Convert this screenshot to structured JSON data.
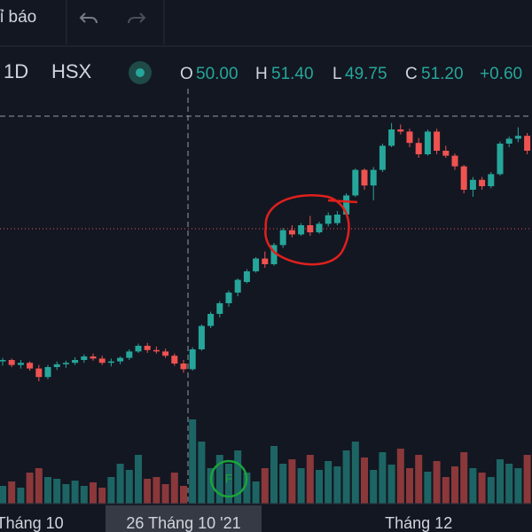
{
  "toolbar": {
    "indicators": "ỉ báo"
  },
  "chart_data": {
    "type": "candlestick",
    "legend": {
      "interval": "1D",
      "exchange": "HSX",
      "o_label": "O",
      "o_value": "50.00",
      "h_label": "H",
      "h_value": "51.40",
      "l_label": "L",
      "l_value": "49.75",
      "c_label": "C",
      "c_value": "51.20",
      "change": "+0.60"
    },
    "categories": [
      null,
      null,
      null,
      "Tháng 10",
      null,
      null,
      null,
      null,
      null,
      null,
      null,
      null,
      null,
      null,
      null,
      null,
      null,
      null,
      null,
      null,
      "26 Tháng 10 '21",
      null,
      null,
      null,
      null,
      null,
      null,
      null,
      null,
      null,
      null,
      null,
      null,
      null,
      null,
      null,
      null,
      null,
      null,
      null,
      null,
      null,
      null,
      null,
      null,
      null,
      "Tháng 12",
      null,
      null,
      null,
      null,
      null,
      null,
      null,
      null,
      null,
      null,
      null,
      null
    ],
    "open": [
      52.8,
      53.0,
      52.3,
      52.6,
      51.8,
      50.6,
      52.0,
      52.4,
      52.6,
      53.0,
      53.5,
      53.2,
      52.6,
      52.8,
      53.3,
      54.2,
      55.0,
      54.4,
      54.2,
      53.6,
      52.5,
      51.7,
      54.5,
      57.8,
      59.5,
      61.0,
      62.5,
      64.0,
      65.5,
      67.3,
      66.5,
      69.2,
      71.3,
      70.7,
      72.0,
      71.0,
      72.2,
      72.3,
      73.5,
      76.2,
      79.8,
      77.6,
      79.8,
      83.2,
      85.5,
      85.2,
      83.6,
      82.0,
      85.2,
      82.5,
      81.8,
      80.3,
      77.0,
      78.4,
      77.5,
      79.2,
      83.5,
      84.2,
      84.6
    ],
    "high": [
      53.3,
      53.2,
      53.0,
      52.8,
      52.3,
      52.3,
      52.8,
      52.9,
      53.4,
      53.8,
      53.9,
      53.6,
      53.2,
      53.5,
      54.5,
      55.3,
      55.4,
      54.9,
      54.6,
      53.9,
      53.0,
      54.8,
      58.0,
      59.8,
      61.3,
      62.8,
      64.5,
      65.8,
      67.5,
      68.3,
      69.5,
      71.6,
      72.0,
      72.3,
      73.3,
      72.5,
      73.8,
      74.0,
      76.5,
      80.0,
      80.0,
      80.2,
      83.5,
      86.4,
      86.2,
      85.6,
      84.3,
      85.5,
      85.6,
      83.2,
      82.1,
      80.5,
      78.8,
      78.8,
      79.5,
      83.8,
      84.5,
      85.8,
      85.0
    ],
    "low": [
      52.2,
      52.0,
      51.8,
      51.5,
      50.0,
      50.3,
      51.6,
      51.9,
      52.3,
      52.6,
      52.9,
      52.3,
      52.1,
      52.4,
      53.0,
      54.0,
      54.0,
      53.9,
      53.3,
      52.2,
      51.2,
      51.5,
      54.3,
      57.5,
      59.0,
      60.5,
      62.0,
      63.8,
      65.3,
      66.0,
      66.3,
      68.8,
      70.3,
      70.5,
      70.5,
      70.8,
      71.8,
      72.0,
      73.3,
      76.0,
      77.0,
      75.5,
      79.5,
      83.0,
      84.8,
      83.0,
      81.5,
      81.8,
      82.0,
      81.5,
      79.8,
      76.5,
      76.0,
      77.0,
      77.2,
      79.0,
      83.0,
      83.7,
      82.0
    ],
    "close": [
      53.0,
      52.3,
      52.6,
      51.8,
      50.6,
      52.0,
      52.4,
      52.6,
      53.0,
      53.5,
      53.2,
      52.6,
      52.8,
      53.3,
      54.2,
      55.0,
      54.4,
      54.2,
      53.6,
      52.5,
      51.7,
      54.5,
      57.8,
      59.5,
      61.0,
      62.5,
      64.3,
      65.5,
      67.3,
      66.5,
      69.2,
      71.3,
      70.7,
      72.0,
      71.0,
      72.2,
      73.4,
      73.5,
      76.2,
      79.8,
      77.6,
      79.8,
      83.2,
      85.5,
      85.2,
      83.6,
      82.0,
      85.2,
      82.5,
      81.8,
      80.3,
      77.0,
      78.4,
      77.5,
      79.2,
      83.5,
      84.2,
      84.6,
      82.5
    ],
    "volume": [
      20,
      25,
      18,
      35,
      40,
      30,
      28,
      22,
      26,
      20,
      24,
      18,
      30,
      45,
      38,
      55,
      28,
      30,
      22,
      35,
      20,
      95,
      70,
      40,
      55,
      45,
      60,
      35,
      25,
      40,
      65,
      45,
      50,
      40,
      55,
      38,
      48,
      42,
      60,
      70,
      52,
      38,
      58,
      44,
      62,
      40,
      55,
      36,
      48,
      30,
      42,
      58,
      40,
      35,
      30,
      50,
      45,
      40,
      55
    ],
    "colors": {
      "up": "#26a69a",
      "down": "#ef5350"
    },
    "ylim": [
      45,
      90
    ],
    "vlim": [
      0,
      100
    ]
  }
}
